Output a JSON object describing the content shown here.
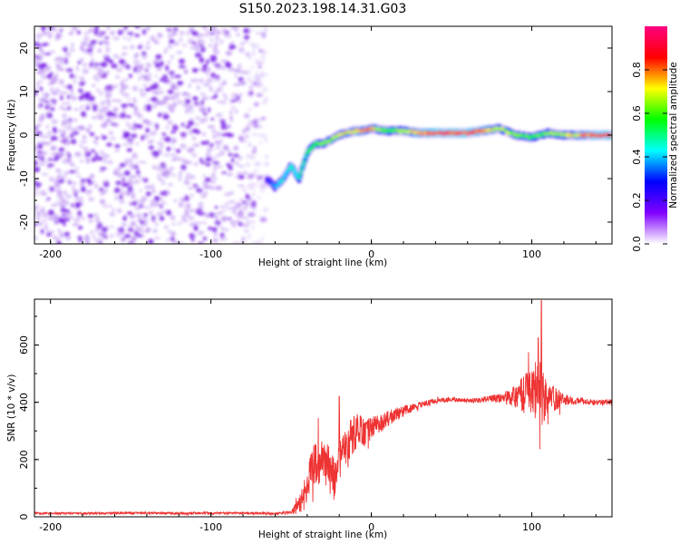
{
  "chart_data": [
    {
      "type": "heatmap",
      "title": "S150.2023.198.14.31.G03",
      "xlabel": "Height of straight line (km)",
      "ylabel": "Frequency (Hz)",
      "xlim": [
        -210,
        150
      ],
      "ylim": [
        -25,
        25
      ],
      "x_ticks": [
        -200,
        -100,
        0,
        100
      ],
      "y_ticks": [
        -20,
        -10,
        0,
        10,
        20
      ],
      "colorbar": {
        "label": "Normalized spectral amplitude",
        "range": [
          0,
          1
        ],
        "ticks": [
          0.0,
          0.2,
          0.4,
          0.6,
          0.8
        ],
        "tick_labels": [
          "0.0",
          "0.2",
          "0.4",
          "0.6",
          "0.8"
        ],
        "colormap": [
          "#ffffff",
          "#8000ff",
          "#0000ff",
          "#00ffff",
          "#00ff00",
          "#ffff00",
          "#ff0000",
          "#ff0080"
        ]
      },
      "noise_region": {
        "x": [
          -210,
          -65
        ],
        "freq": [
          -25,
          25
        ]
      },
      "ridge": {
        "x": [
          -65,
          -60,
          -55,
          -50,
          -45,
          -40,
          -35,
          -30,
          -25,
          -20,
          -15,
          -10,
          -5,
          0,
          10,
          20,
          30,
          40,
          50,
          60,
          70,
          80,
          90,
          100,
          110,
          120,
          130,
          140,
          150
        ],
        "freq": [
          -10,
          -12,
          -10,
          -7,
          -10,
          -4,
          -2,
          -2,
          -1,
          0,
          0.5,
          1,
          1,
          1.5,
          1,
          1,
          0.5,
          0.5,
          0.5,
          0.5,
          1,
          1.5,
          0,
          -0.5,
          0.5,
          0,
          0,
          0,
          0
        ],
        "amplitude": [
          0.3,
          0.4,
          0.45,
          0.45,
          0.5,
          0.55,
          0.6,
          0.65,
          0.65,
          0.7,
          0.75,
          0.8,
          0.8,
          0.8,
          0.6,
          0.7,
          0.85,
          0.9,
          0.9,
          0.9,
          0.85,
          0.7,
          0.65,
          0.6,
          0.65,
          0.7,
          0.8,
          0.9,
          0.9
        ]
      }
    },
    {
      "type": "line",
      "title": "",
      "xlabel": "Height of straight line (km)",
      "ylabel": "SNR (10 * v/v)",
      "xlim": [
        -210,
        150
      ],
      "ylim": [
        0,
        760
      ],
      "x_ticks": [
        -200,
        -100,
        0,
        100
      ],
      "y_ticks": [
        0,
        200,
        400,
        600
      ],
      "series": [
        {
          "color": "#ee3333",
          "x": [
            -210,
            -180,
            -150,
            -120,
            -100,
            -80,
            -60,
            -50,
            -45,
            -40,
            -37,
            -35,
            -30,
            -25,
            -22,
            -20,
            -15,
            -10,
            -5,
            0,
            10,
            20,
            30,
            40,
            50,
            60,
            70,
            80,
            90,
            95,
            100,
            104,
            106,
            110,
            120,
            130,
            140,
            150
          ],
          "y": [
            12,
            12,
            13,
            12,
            13,
            13,
            12,
            14,
            40,
            100,
            160,
            180,
            200,
            150,
            120,
            220,
            260,
            290,
            300,
            310,
            340,
            370,
            390,
            405,
            410,
            405,
            410,
            415,
            420,
            430,
            440,
            430,
            420,
            415,
            410,
            405,
            400,
            400
          ],
          "spread": [
            4,
            4,
            4,
            4,
            4,
            4,
            4,
            6,
            30,
            60,
            80,
            80,
            70,
            90,
            80,
            90,
            80,
            70,
            60,
            40,
            30,
            20,
            10,
            10,
            8,
            8,
            10,
            15,
            40,
            70,
            90,
            120,
            120,
            60,
            20,
            12,
            10,
            10
          ],
          "spikes": [
            {
              "x": -33,
              "y": 345
            },
            {
              "x": -20,
              "y": 420
            },
            {
              "x": 98,
              "y": 575
            },
            {
              "x": 104,
              "y": 625
            },
            {
              "x": 106,
              "y": 755
            }
          ]
        }
      ]
    }
  ]
}
